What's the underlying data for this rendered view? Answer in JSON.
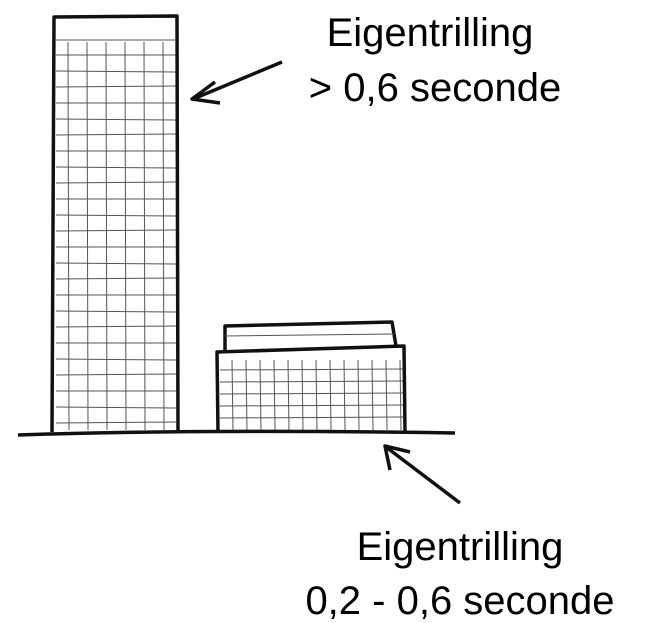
{
  "annotations": [
    {
      "title": "Eigentrilling",
      "detail": "> 0,6 seconde"
    },
    {
      "title": "Eigentrilling",
      "detail": "0,2 - 0,6 seconde"
    }
  ]
}
